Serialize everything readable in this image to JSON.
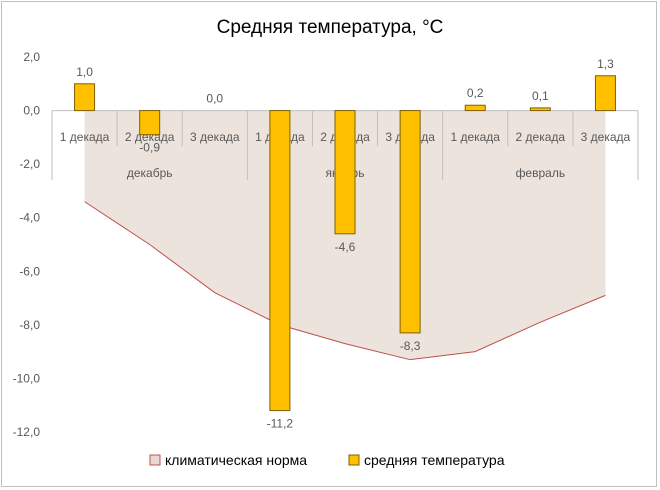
{
  "chart_data": {
    "type": "bar",
    "title": "Средняя температура, °С",
    "xlabel": "",
    "ylabel": "",
    "ylim": [
      -12,
      2
    ],
    "ytick_step": 2,
    "ytick_labels": [
      "2,0",
      "0,0",
      "-2,0",
      "-4,0",
      "-6,0",
      "-8,0",
      "-10,0",
      "-12,0"
    ],
    "groups": [
      "декабрь",
      "январь",
      "февраль"
    ],
    "categories": [
      "1 декада",
      "2 декада",
      "3 декада",
      "1 декада",
      "2 декада",
      "3 декада",
      "1 декада",
      "2 декада",
      "3 декада"
    ],
    "series": [
      {
        "name": "климатическая норма",
        "type": "area",
        "color": "#e6d9d2",
        "line_color": "#c0504d",
        "values": [
          -3.4,
          -5.0,
          -6.8,
          -8.0,
          -8.7,
          -9.3,
          -9.0,
          -7.9,
          -6.9
        ]
      },
      {
        "name": "средняя температура",
        "type": "bar",
        "color": "#ffc000",
        "border_color": "#7f6000",
        "values": [
          1.0,
          -0.9,
          0.0,
          -11.2,
          -4.6,
          -8.3,
          0.2,
          0.1,
          1.3
        ],
        "value_labels": [
          "1,0",
          "-0,9",
          "0,0",
          "-11,2",
          "-4,6",
          "-8,3",
          "0,2",
          "0,1",
          "1,3"
        ]
      }
    ],
    "grid": false,
    "legend": "bottom"
  }
}
